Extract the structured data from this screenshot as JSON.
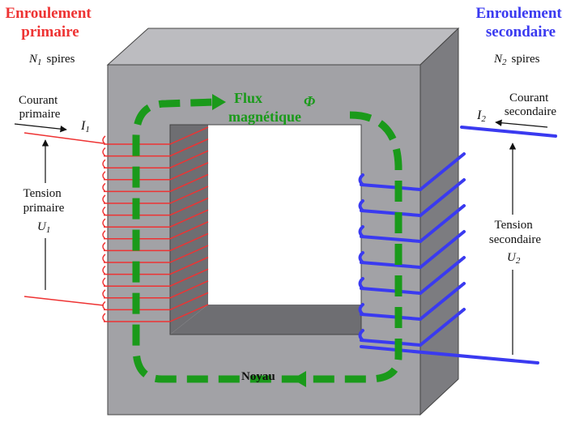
{
  "primary": {
    "title_line1": "Enroulement",
    "title_line2": "primaire",
    "turns_symbol": "N",
    "turns_sub": "1",
    "turns_word": "spires",
    "current_line1": "Courant",
    "current_line2": "primaire",
    "current_symbol": "I",
    "current_sub": "1",
    "voltage_line1": "Tension",
    "voltage_line2": "primaire",
    "voltage_symbol": "U",
    "voltage_sub": "1",
    "color": "#ee3333"
  },
  "secondary": {
    "title_line1": "Enroulement",
    "title_line2": "secondaire",
    "turns_symbol": "N",
    "turns_sub": "2",
    "turns_word": "spires",
    "current_line1": "Courant",
    "current_line2": "secondaire",
    "current_symbol": "I",
    "current_sub": "2",
    "voltage_line1": "Tension",
    "voltage_line2": "secondaire",
    "voltage_symbol": "U",
    "voltage_sub": "2",
    "color": "#3a3af0"
  },
  "core": {
    "label": "Noyau",
    "front_color": "#a2a2a6",
    "top_color": "#bcbcc0",
    "side_color": "#7c7c80"
  },
  "flux": {
    "line1": "Flux",
    "line2": "magnétique",
    "symbol": "Φ",
    "color": "#1a9a1a"
  }
}
